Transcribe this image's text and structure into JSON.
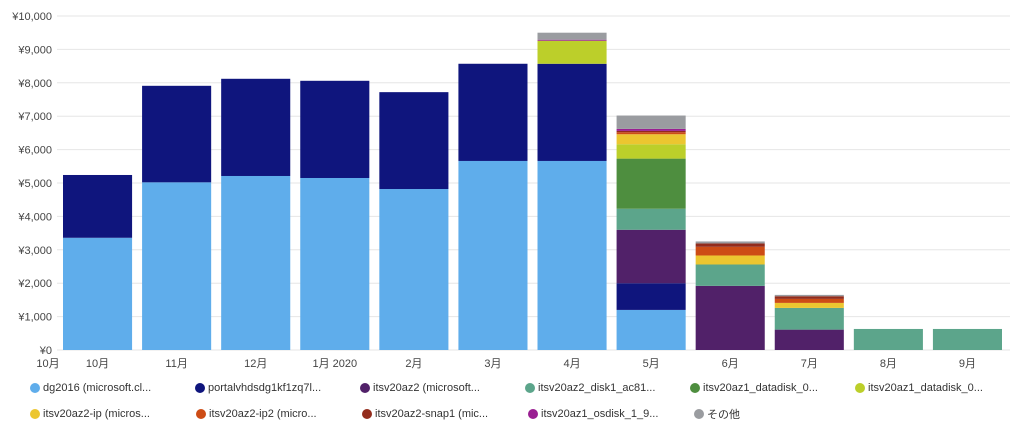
{
  "chart_data": {
    "type": "bar",
    "stacked": true,
    "title": "",
    "xlabel": "",
    "ylabel": "",
    "ylim": [
      0,
      10000
    ],
    "y_ticks": [
      "¥0",
      "¥1,000",
      "¥2,000",
      "¥3,000",
      "¥4,000",
      "¥5,000",
      "¥6,000",
      "¥7,000",
      "¥8,000",
      "¥9,000",
      "¥10,000"
    ],
    "y_tick_values": [
      0,
      1000,
      2000,
      3000,
      4000,
      5000,
      6000,
      7000,
      8000,
      9000,
      10000
    ],
    "x_axis_start_label": "10月",
    "categories": [
      "10月",
      "11月",
      "12月",
      "1月 2020",
      "2月",
      "3月",
      "4月",
      "5月",
      "6月",
      "7月",
      "8月",
      "9月"
    ],
    "grid": true,
    "legend_position": "bottom",
    "series": [
      {
        "name": "dg2016 (microsoft.cl...",
        "color": "#5fadeb",
        "values": [
          3360,
          5020,
          5210,
          5150,
          4820,
          5660,
          5660,
          1200,
          0,
          0,
          0,
          0
        ]
      },
      {
        "name": "portalvhdsdg1kf1zq7l...",
        "color": "#0f157d",
        "values": [
          1880,
          2890,
          2910,
          2910,
          2900,
          2910,
          2910,
          800,
          0,
          0,
          0,
          0
        ]
      },
      {
        "name": "itsv20az2 (microsoft...",
        "color": "#512169",
        "values": [
          0,
          0,
          0,
          0,
          0,
          0,
          0,
          1600,
          1920,
          610,
          0,
          0
        ]
      },
      {
        "name": "itsv20az2_disk1_ac81...",
        "color": "#5ca58b",
        "values": [
          0,
          0,
          0,
          0,
          0,
          0,
          0,
          630,
          640,
          650,
          630,
          630
        ]
      },
      {
        "name": "itsv20az1_datadisk_0...",
        "color": "#4e8e3f",
        "values": [
          0,
          0,
          0,
          0,
          0,
          0,
          0,
          1500,
          0,
          0,
          0,
          0
        ]
      },
      {
        "name": "itsv20az1_datadisk_0...",
        "color": "#bccf2a",
        "values": [
          0,
          0,
          0,
          0,
          0,
          0,
          690,
          430,
          0,
          0,
          0,
          0
        ]
      },
      {
        "name": "itsv20az2-ip (micros...",
        "color": "#ecc630",
        "values": [
          0,
          0,
          0,
          0,
          0,
          0,
          0,
          300,
          270,
          150,
          0,
          0
        ]
      },
      {
        "name": "itsv20az2-ip2 (micro...",
        "color": "#cd4c15",
        "values": [
          0,
          0,
          0,
          0,
          0,
          0,
          0,
          60,
          260,
          120,
          0,
          0
        ]
      },
      {
        "name": "itsv20az2-snap1 (mic...",
        "color": "#932c1c",
        "values": [
          0,
          0,
          0,
          0,
          0,
          0,
          0,
          40,
          100,
          80,
          0,
          0
        ]
      },
      {
        "name": "itsv20az1_osdisk_1_9...",
        "color": "#9a1f92",
        "values": [
          0,
          0,
          0,
          0,
          0,
          0,
          30,
          60,
          0,
          0,
          0,
          0
        ]
      },
      {
        "name": "その他",
        "color": "#9a9ca0",
        "values": [
          0,
          0,
          0,
          0,
          0,
          0,
          210,
          400,
          60,
          40,
          0,
          0
        ]
      }
    ]
  }
}
